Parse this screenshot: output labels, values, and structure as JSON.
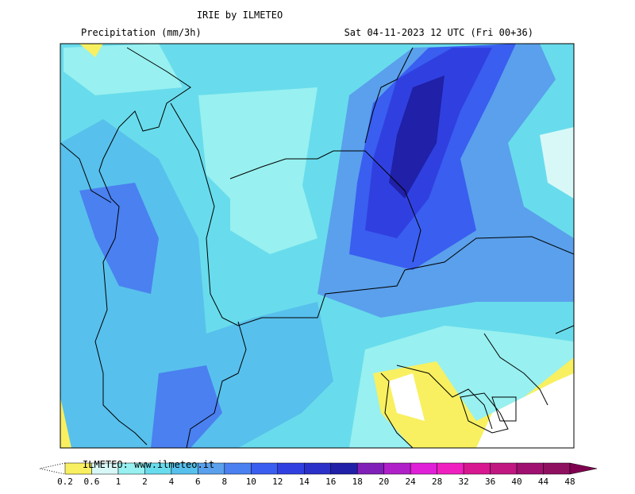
{
  "header": {
    "title": "IRIE by ILMETEO",
    "subtitle": "Precipitation (mm/3h)",
    "valid_time": "Sat 04-11-2023 12 UTC (Fri 00+36)"
  },
  "colorbar": {
    "credit": "ILMETEO: www.ilmeteo.it",
    "labels": [
      "0.2",
      "0.6",
      "1",
      "2",
      "4",
      "6",
      "8",
      "10",
      "12",
      "14",
      "16",
      "18",
      "20",
      "24",
      "28",
      "32",
      "36",
      "40",
      "44",
      "48"
    ],
    "colors": [
      "#f8f060",
      "#d8f8f8",
      "#98f0f0",
      "#68dcec",
      "#58c0ec",
      "#5aa0ec",
      "#4a80f0",
      "#3a5ef0",
      "#3040e0",
      "#2a30c8",
      "#2020a8",
      "#8020b8",
      "#b020c8",
      "#e020d8",
      "#f020c0",
      "#d81890",
      "#c01880",
      "#a01070",
      "#901060",
      "#800050"
    ]
  }
}
